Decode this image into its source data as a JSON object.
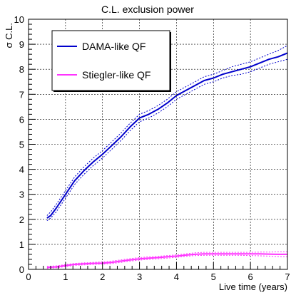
{
  "chart_data": {
    "type": "line",
    "title": "C.L. exclusion power",
    "xlabel": "Live time (years)",
    "ylabel": "σ C.L.",
    "xlim": [
      0,
      7
    ],
    "ylim": [
      0,
      10
    ],
    "x_ticks": [
      0,
      1,
      2,
      3,
      4,
      5,
      6,
      7
    ],
    "y_ticks": [
      0,
      1,
      2,
      3,
      4,
      5,
      6,
      7,
      8,
      9,
      10
    ],
    "grid": true,
    "legend_position": "top-left",
    "series": [
      {
        "name": "DAMA-like QF",
        "color": "#0000cc",
        "band_color": "#0000cc",
        "x": [
          0.5,
          0.6,
          0.75,
          1.0,
          1.25,
          1.5,
          1.75,
          2.0,
          2.25,
          2.5,
          2.75,
          3.0,
          3.25,
          3.5,
          3.75,
          4.0,
          4.25,
          4.5,
          4.75,
          5.0,
          5.25,
          5.5,
          5.75,
          6.0,
          6.25,
          6.5,
          6.75,
          7.0
        ],
        "values": [
          2.05,
          2.15,
          2.45,
          3.0,
          3.55,
          3.95,
          4.3,
          4.6,
          4.95,
          5.3,
          5.7,
          6.05,
          6.2,
          6.4,
          6.65,
          6.95,
          7.15,
          7.35,
          7.55,
          7.65,
          7.8,
          7.9,
          8.0,
          8.1,
          8.25,
          8.4,
          8.5,
          8.65
        ],
        "band_upper": [
          2.15,
          2.3,
          2.6,
          3.15,
          3.7,
          4.1,
          4.45,
          4.75,
          5.1,
          5.45,
          5.85,
          6.2,
          6.35,
          6.55,
          6.8,
          7.1,
          7.3,
          7.5,
          7.7,
          7.8,
          7.95,
          8.1,
          8.2,
          8.3,
          8.45,
          8.6,
          8.75,
          8.95
        ],
        "band_lower": [
          1.95,
          2.05,
          2.3,
          2.85,
          3.4,
          3.8,
          4.15,
          4.45,
          4.8,
          5.15,
          5.55,
          5.9,
          6.05,
          6.25,
          6.5,
          6.8,
          7.0,
          7.2,
          7.4,
          7.5,
          7.65,
          7.75,
          7.8,
          7.9,
          8.05,
          8.2,
          8.3,
          8.4
        ]
      },
      {
        "name": "Stiegler-like QF",
        "color": "#ff33ff",
        "band_color": "#ff33ff",
        "x": [
          0.5,
          0.75,
          1.0,
          1.25,
          1.5,
          1.75,
          2.0,
          2.25,
          2.5,
          2.75,
          3.0,
          3.25,
          3.5,
          3.75,
          4.0,
          4.25,
          4.5,
          4.75,
          5.0,
          5.25,
          5.5,
          5.75,
          6.0,
          6.25,
          6.5,
          6.75,
          7.0
        ],
        "values": [
          0.08,
          0.1,
          0.15,
          0.2,
          0.22,
          0.24,
          0.25,
          0.28,
          0.33,
          0.38,
          0.42,
          0.45,
          0.47,
          0.5,
          0.53,
          0.57,
          0.6,
          0.62,
          0.62,
          0.62,
          0.62,
          0.62,
          0.62,
          0.62,
          0.61,
          0.6,
          0.6
        ],
        "band_upper": [
          0.12,
          0.14,
          0.19,
          0.24,
          0.26,
          0.28,
          0.3,
          0.33,
          0.38,
          0.43,
          0.47,
          0.5,
          0.52,
          0.55,
          0.58,
          0.62,
          0.66,
          0.68,
          0.68,
          0.68,
          0.68,
          0.68,
          0.68,
          0.69,
          0.69,
          0.7,
          0.7
        ],
        "band_lower": [
          0.04,
          0.06,
          0.11,
          0.16,
          0.18,
          0.2,
          0.21,
          0.23,
          0.28,
          0.33,
          0.37,
          0.4,
          0.42,
          0.45,
          0.48,
          0.52,
          0.55,
          0.56,
          0.56,
          0.56,
          0.56,
          0.56,
          0.55,
          0.54,
          0.53,
          0.51,
          0.5
        ]
      }
    ]
  }
}
